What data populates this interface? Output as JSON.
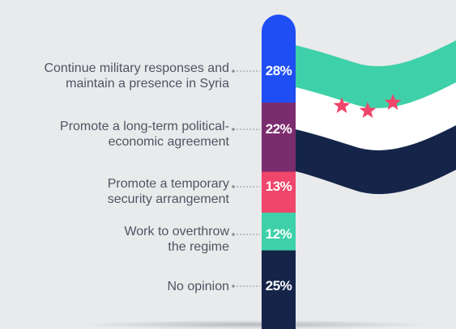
{
  "chart_data": {
    "type": "bar",
    "categories": [
      "Continue military responses and maintain a presence in Syria",
      "Promote a long-term political-economic agreement",
      "Promote a temporary security arrangement",
      "Work to overthrow the regime",
      "No opinion"
    ],
    "category_lines": [
      [
        "Continue military responses and",
        "maintain a presence in Syria"
      ],
      [
        "Promote a long-term political-",
        "economic agreement"
      ],
      [
        "Promote a temporary",
        "security arrangement"
      ],
      [
        "Work to overthrow",
        "the regime"
      ],
      [
        "No opinion"
      ]
    ],
    "values": [
      28,
      22,
      13,
      12,
      25
    ],
    "value_labels": [
      "28%",
      "22%",
      "13%",
      "12%",
      "25%"
    ],
    "stacked": true,
    "orientation": "vertical-stacked",
    "title": "",
    "xlabel": "",
    "ylabel": "",
    "grid": false,
    "legend": "none",
    "colors": [
      "#1f4ef5",
      "#7b2c6e",
      "#f0466b",
      "#3ed1a9",
      "#15254a"
    ]
  },
  "decoration": {
    "flag_colors": [
      "#3ed1a9",
      "#ffffff",
      "#15254a"
    ],
    "star_color": "#f0466b",
    "star_count": 3
  }
}
